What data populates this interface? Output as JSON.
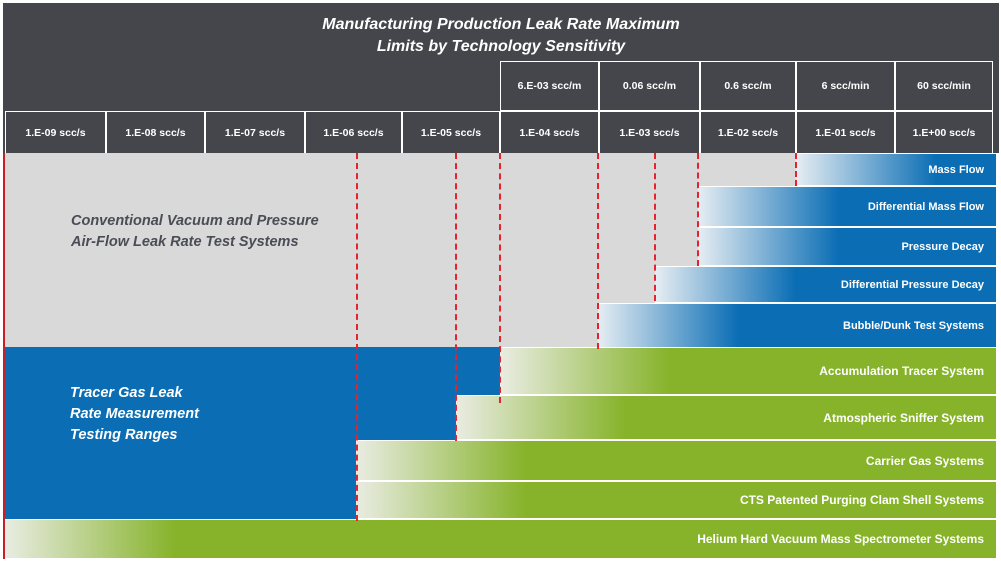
{
  "title": {
    "line1": "Manufacturing Production Leak Rate Maximum",
    "line2": "Limits by Technology Sensitivity"
  },
  "scale_top": [
    "6.E-03 scc/m",
    "0.06 scc/m",
    "0.6 scc/m",
    "6 scc/min",
    "60 scc/min"
  ],
  "scale_bottom": [
    "1.E-09 scc/s",
    "1.E-08 scc/s",
    "1.E-07 scc/s",
    "1.E-06 scc/s",
    "1.E-05 scc/s",
    "1.E-04 scc/s",
    "1.E-03 scc/s",
    "1.E-02 scc/s",
    "1.E-01 scc/s",
    "1.E+00 scc/s"
  ],
  "zones": {
    "conventional": {
      "line1": "Conventional Vacuum and Pressure",
      "line2": "Air-Flow Leak Rate Test Systems"
    },
    "tracer": {
      "line1": "Tracer Gas Leak",
      "line2": "Rate Measurement",
      "line3": "Testing Ranges"
    }
  },
  "methods": [
    {
      "label": "Mass Flow",
      "group": "conventional"
    },
    {
      "label": "Differential Mass Flow",
      "group": "conventional"
    },
    {
      "label": "Pressure Decay",
      "group": "conventional"
    },
    {
      "label": "Differential Pressure Decay",
      "group": "conventional"
    },
    {
      "label": "Bubble/Dunk Test Systems",
      "group": "conventional"
    },
    {
      "label": "Accumulation Tracer System",
      "group": "tracer"
    },
    {
      "label": "Atmospheric Sniffer System",
      "group": "tracer"
    },
    {
      "label": "Carrier Gas Systems",
      "group": "tracer"
    },
    {
      "label": "CTS Patented Purging Clam Shell Systems",
      "group": "tracer"
    },
    {
      "label": "Helium Hard Vacuum Mass Spectrometer Systems",
      "group": "tracer"
    }
  ],
  "colors": {
    "header": "#45464c",
    "conventional_zone": "#d9d9d9",
    "tracer_zone": "#0b6eb5",
    "green_bar": "#86b32a",
    "marker": "#e4232d"
  }
}
